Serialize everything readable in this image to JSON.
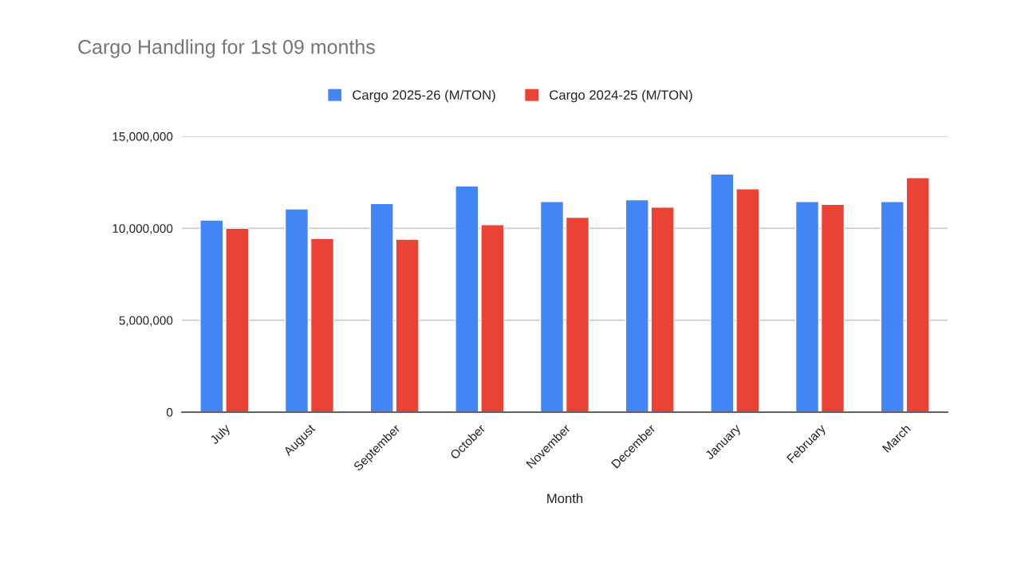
{
  "chart_data": {
    "type": "bar",
    "title": "Cargo Handling for 1st 09 months",
    "xlabel": "Month",
    "categories": [
      "July",
      "August",
      "September",
      "October",
      "November",
      "December",
      "January",
      "February",
      "March"
    ],
    "series": [
      {
        "name": "Cargo 2025-26 (M/TON)",
        "color": "#4285f4",
        "values": [
          10450000,
          11050000,
          11350000,
          12300000,
          11450000,
          11550000,
          12950000,
          11450000,
          11450000
        ]
      },
      {
        "name": "Cargo 2024-25 (M/TON)",
        "color": "#ea4335",
        "values": [
          10000000,
          9450000,
          9400000,
          10200000,
          10600000,
          11150000,
          12150000,
          11300000,
          12750000
        ]
      }
    ],
    "ylim": [
      0,
      15000000
    ],
    "yticks": [
      0,
      {
        "value": 5000000,
        "label": "5,000,000"
      },
      {
        "value": 10000000,
        "label": "10,000,000"
      },
      {
        "value": 15000000,
        "label": "15,000,000"
      }
    ],
    "grid": "y",
    "legend": "top"
  }
}
